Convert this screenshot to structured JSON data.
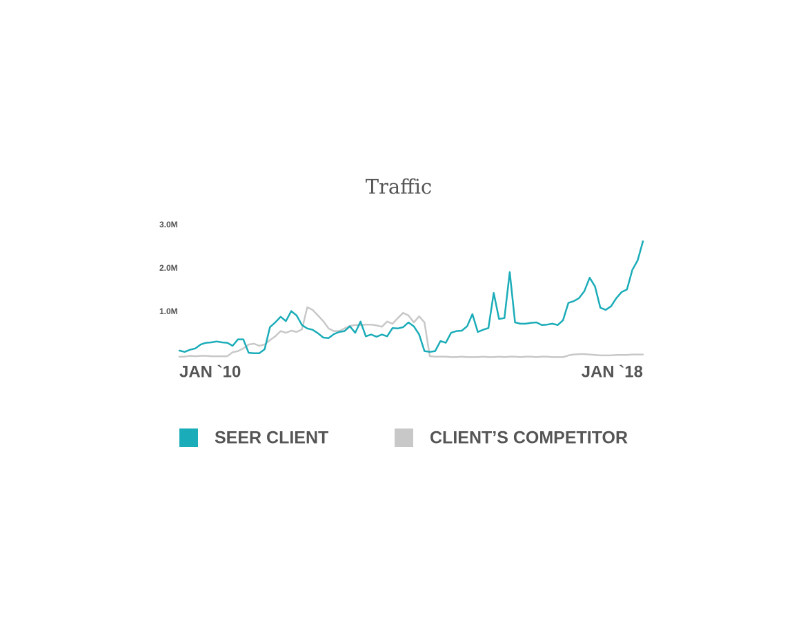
{
  "chart_data": {
    "type": "line",
    "title": "Traffic",
    "categories": [
      "JAN `10",
      null,
      null,
      null,
      null,
      null,
      null,
      null,
      null,
      null,
      null,
      null,
      null,
      null,
      null,
      null,
      null,
      null,
      null,
      null,
      null,
      null,
      null,
      null,
      null,
      null,
      null,
      null,
      null,
      null,
      null,
      null,
      null,
      null,
      null,
      null,
      null,
      null,
      null,
      null,
      null,
      null,
      null,
      null,
      null,
      null,
      null,
      null,
      null,
      null,
      null,
      null,
      null,
      null,
      null,
      null,
      null,
      null,
      null,
      null,
      null,
      null,
      null,
      null,
      null,
      null,
      null,
      null,
      null,
      null,
      null,
      null,
      null,
      null,
      null,
      null,
      null,
      null,
      null,
      null,
      null,
      null,
      null,
      null,
      null,
      null,
      null,
      "JAN `18"
    ],
    "series": [
      {
        "name": "CLIENT’S COMPETITOR",
        "color": "#c8c8c8",
        "values": [
          -0.03,
          -0.03,
          -0.01,
          -0.02,
          -0.01,
          -0.01,
          -0.02,
          -0.02,
          -0.02,
          -0.02,
          0.07,
          0.1,
          0.16,
          0.25,
          0.27,
          0.22,
          0.25,
          0.35,
          0.44,
          0.56,
          0.52,
          0.57,
          0.54,
          0.6,
          1.11,
          1.05,
          0.92,
          0.79,
          0.62,
          0.56,
          0.56,
          0.62,
          0.68,
          0.7,
          0.7,
          0.71,
          0.71,
          0.69,
          0.66,
          0.78,
          0.73,
          0.86,
          0.98,
          0.92,
          0.76,
          0.9,
          0.76,
          -0.02,
          -0.03,
          -0.03,
          -0.03,
          -0.04,
          -0.04,
          -0.03,
          -0.04,
          -0.04,
          -0.04,
          -0.03,
          -0.04,
          -0.04,
          -0.03,
          -0.04,
          -0.03,
          -0.03,
          -0.04,
          -0.03,
          -0.03,
          -0.04,
          -0.03,
          -0.03,
          -0.04,
          -0.04,
          -0.04,
          0.0,
          0.02,
          0.03,
          0.03,
          0.02,
          0.01,
          0.0,
          0.0,
          0.0,
          0.01,
          0.01,
          0.01,
          0.02,
          0.02,
          0.02
        ]
      },
      {
        "name": "SEER CLIENT",
        "color": "#1aacb8",
        "values": [
          0.11,
          0.08,
          0.13,
          0.16,
          0.25,
          0.29,
          0.3,
          0.32,
          0.3,
          0.29,
          0.22,
          0.37,
          0.37,
          0.06,
          0.05,
          0.05,
          0.14,
          0.65,
          0.76,
          0.89,
          0.79,
          1.02,
          0.92,
          0.7,
          0.62,
          0.59,
          0.51,
          0.41,
          0.4,
          0.49,
          0.54,
          0.56,
          0.67,
          0.52,
          0.78,
          0.44,
          0.48,
          0.43,
          0.48,
          0.44,
          0.63,
          0.62,
          0.65,
          0.76,
          0.67,
          0.48,
          0.1,
          0.08,
          0.1,
          0.33,
          0.29,
          0.52,
          0.56,
          0.57,
          0.67,
          0.95,
          0.54,
          0.59,
          0.63,
          1.44,
          0.84,
          0.86,
          1.92,
          0.76,
          0.73,
          0.73,
          0.75,
          0.76,
          0.7,
          0.71,
          0.73,
          0.7,
          0.81,
          1.21,
          1.25,
          1.32,
          1.48,
          1.79,
          1.59,
          1.1,
          1.05,
          1.13,
          1.32,
          1.46,
          1.52,
          1.97,
          2.19,
          2.63
        ]
      }
    ],
    "ylim": [
      -0.05,
      3
    ],
    "yticks": [
      {
        "value": 1,
        "label": "1.0M"
      },
      {
        "value": 2,
        "label": "2.0M"
      },
      {
        "value": 3,
        "label": "3.0M"
      }
    ],
    "grid": false
  }
}
